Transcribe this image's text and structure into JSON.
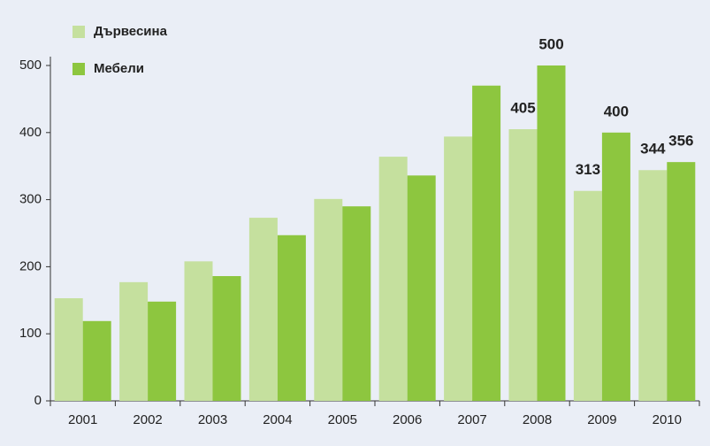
{
  "chart_data": {
    "type": "bar",
    "categories": [
      "2001",
      "2002",
      "2003",
      "2004",
      "2005",
      "2006",
      "2007",
      "2008",
      "2009",
      "2010"
    ],
    "series": [
      {
        "name": "Дървесина",
        "color": "#c5e09e",
        "values": [
          153,
          177,
          208,
          273,
          301,
          364,
          394,
          405,
          313,
          344
        ],
        "value_labels": [
          null,
          null,
          null,
          null,
          null,
          null,
          null,
          "405",
          "313",
          "344"
        ]
      },
      {
        "name": "Мебели",
        "color": "#8dc63f",
        "values": [
          119,
          148,
          186,
          247,
          290,
          336,
          470,
          500,
          400,
          356
        ],
        "value_labels": [
          null,
          null,
          null,
          null,
          null,
          null,
          null,
          "500",
          "400",
          "356"
        ]
      }
    ],
    "ylim": [
      0,
      500
    ],
    "yticks": [
      0,
      100,
      200,
      300,
      400,
      500
    ],
    "grid": false,
    "legend": "top-left"
  }
}
